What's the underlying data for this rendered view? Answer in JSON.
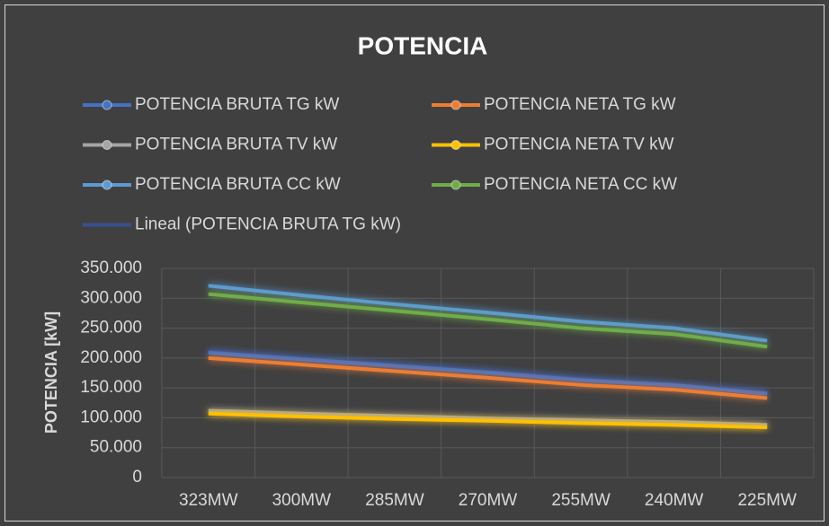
{
  "chart_data": {
    "type": "line",
    "title": "POTENCIA",
    "y_label": "POTENCIA [kW]",
    "categories": [
      "323MW",
      "300MW",
      "285MW",
      "270MW",
      "255MW",
      "240MW",
      "225MW"
    ],
    "series": [
      {
        "name": "POTENCIA BRUTA  TG kW",
        "color": "#4472c4",
        "values": [
          209000,
          198000,
          187000,
          176000,
          163000,
          155000,
          140000
        ]
      },
      {
        "name": "POTENCIA NETA  TG kW",
        "color": "#ed7d31",
        "values": [
          200000,
          189000,
          178000,
          167000,
          155000,
          147000,
          133000
        ]
      },
      {
        "name": "POTENCIA BRUTA  TV kW",
        "color": "#a5a5a5",
        "values": [
          112000,
          107000,
          103000,
          99000,
          96000,
          93000,
          88000
        ]
      },
      {
        "name": "POTENCIA NETA  TV kW",
        "color": "#ffc000",
        "values": [
          107000,
          102000,
          98000,
          95000,
          91000,
          88000,
          84000
        ]
      },
      {
        "name": "POTENCIA BRUTA  CC kW",
        "color": "#5b9bd5",
        "values": [
          321000,
          305000,
          290000,
          276000,
          261000,
          250000,
          229000
        ]
      },
      {
        "name": "POTENCIA NETA  CC kW",
        "color": "#70ad47",
        "values": [
          307000,
          293000,
          279000,
          265000,
          250000,
          240000,
          219000
        ]
      },
      {
        "name": "Lineal (POTENCIA BRUTA  TG kW)",
        "color": "#3a4f8f",
        "trendline": true,
        "values": [
          209400,
          198100,
          186800,
          175400,
          164100,
          152800,
          141500
        ]
      }
    ],
    "ylim": [
      0,
      350000
    ],
    "yticks": [
      0,
      {
        "value": 50000,
        "label": "50.000"
      },
      {
        "value": 100000,
        "label": "100.000"
      },
      {
        "value": 150000,
        "label": "150.000"
      },
      {
        "value": 200000,
        "label": "200.000"
      },
      {
        "value": 250000,
        "label": "250.000"
      },
      {
        "value": 300000,
        "label": "300.000"
      },
      {
        "value": 350000,
        "label": "350.000"
      }
    ],
    "grid": true
  }
}
